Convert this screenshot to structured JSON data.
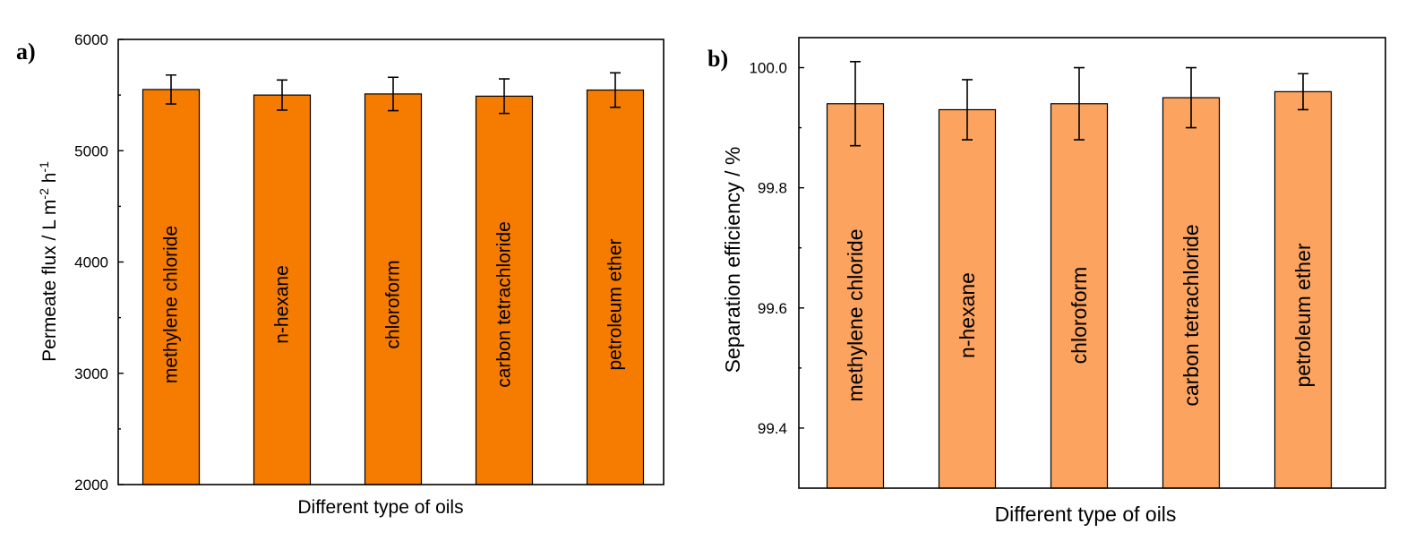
{
  "chart_data": [
    {
      "panel": "a)",
      "type": "bar",
      "categories": [
        "methylene chloride",
        "n-hexane",
        "chloroform",
        "carbon tetrachloride",
        "petroleum ether"
      ],
      "values": [
        5550,
        5500,
        5510,
        5490,
        5545
      ],
      "errors": [
        130,
        135,
        150,
        155,
        155
      ],
      "xlabel": "Different type of oils",
      "ylabel_main": "Permeate flux / L m",
      "ylabel_sup1": "-2",
      "ylabel_mid": " h",
      "ylabel_sup2": "-1",
      "ylim": [
        2000,
        6000
      ],
      "yticks": [
        "2000",
        "3000",
        "4000",
        "5000",
        "6000"
      ],
      "bar_color": "#f57c00"
    },
    {
      "panel": "b)",
      "type": "bar",
      "categories": [
        "methylene chloride",
        "n-hexane",
        "chloroform",
        "carbon tetrachloride",
        "petroleum ether"
      ],
      "values": [
        99.94,
        99.93,
        99.94,
        99.95,
        99.96
      ],
      "errors": [
        0.07,
        0.05,
        0.06,
        0.05,
        0.03
      ],
      "xlabel": "Different type of oils",
      "ylabel": "Separation efficiency / %",
      "ylim": [
        99.3,
        100.05
      ],
      "yticks": [
        "99.4",
        "99.6",
        "99.8",
        "100.0"
      ],
      "bar_color": "#fba35f"
    }
  ]
}
